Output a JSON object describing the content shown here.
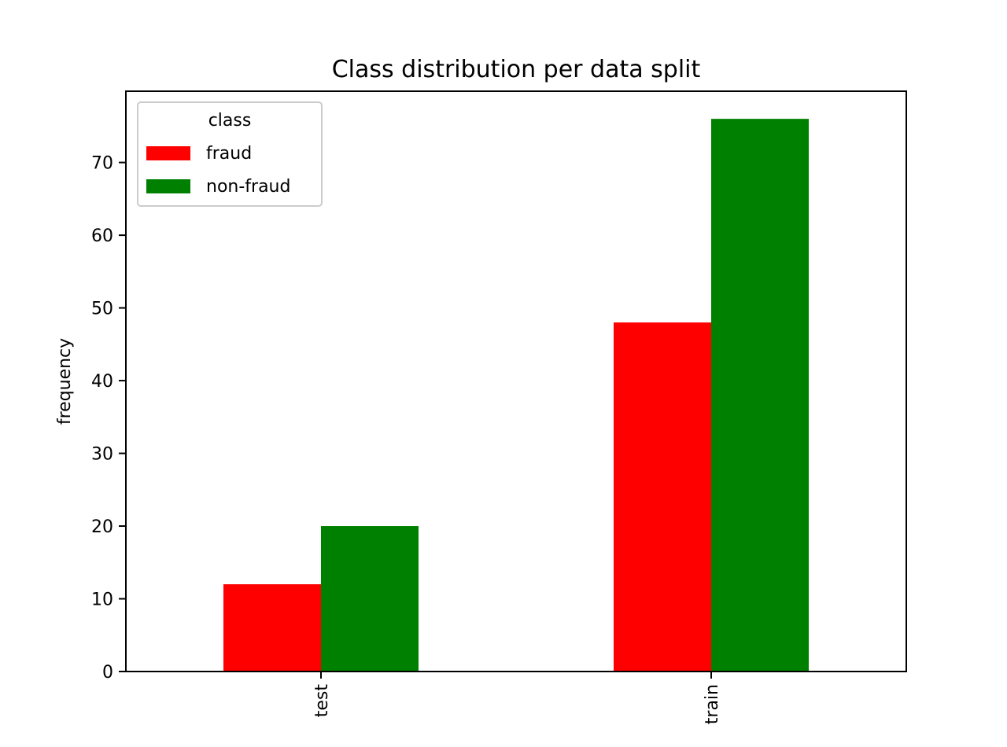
{
  "chart_data": {
    "type": "bar",
    "title": "Class distribution per data split",
    "xlabel": "",
    "ylabel": "frequency",
    "categories": [
      "test",
      "train"
    ],
    "series": [
      {
        "name": "fraud",
        "values": [
          12,
          48
        ],
        "color": "#ff0000"
      },
      {
        "name": "non-fraud",
        "values": [
          20,
          76
        ],
        "color": "#008000"
      }
    ],
    "yticks": [
      "0",
      "10",
      "20",
      "30",
      "40",
      "50",
      "60",
      "70"
    ],
    "ylim": [
      0,
      79.8
    ],
    "legend": {
      "title": "class",
      "placement": "top-left"
    },
    "grid": false
  }
}
